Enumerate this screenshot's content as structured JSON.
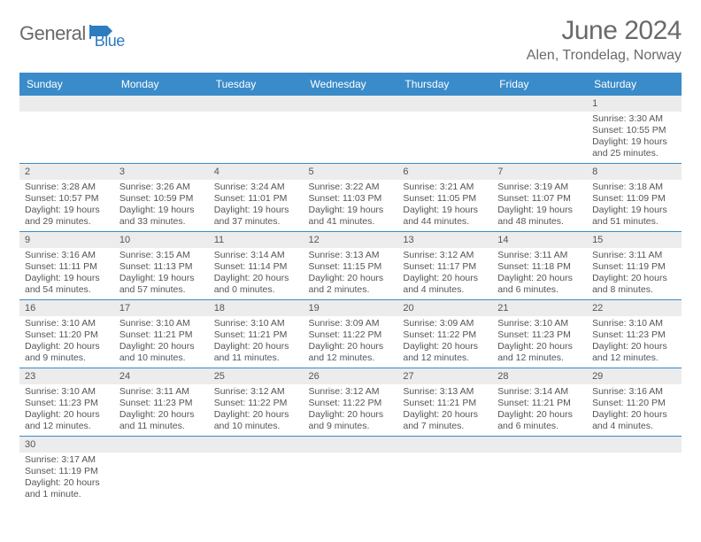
{
  "logo": {
    "text1": "General",
    "text2": "Blue",
    "icon_color": "#2d7cc0",
    "text_color": "#6a6a6a"
  },
  "title": "June 2024",
  "location": "Alen, Trondelag, Norway",
  "colors": {
    "header_bg": "#3a8bc9",
    "header_fg": "#ffffff",
    "daynum_bg": "#ececec",
    "border": "#3a8bc9",
    "text": "#555555"
  },
  "weekdays": [
    "Sunday",
    "Monday",
    "Tuesday",
    "Wednesday",
    "Thursday",
    "Friday",
    "Saturday"
  ],
  "weeks": [
    [
      null,
      null,
      null,
      null,
      null,
      null,
      {
        "n": "1",
        "sr": "Sunrise: 3:30 AM",
        "ss": "Sunset: 10:55 PM",
        "dl": "Daylight: 19 hours and 25 minutes."
      }
    ],
    [
      {
        "n": "2",
        "sr": "Sunrise: 3:28 AM",
        "ss": "Sunset: 10:57 PM",
        "dl": "Daylight: 19 hours and 29 minutes."
      },
      {
        "n": "3",
        "sr": "Sunrise: 3:26 AM",
        "ss": "Sunset: 10:59 PM",
        "dl": "Daylight: 19 hours and 33 minutes."
      },
      {
        "n": "4",
        "sr": "Sunrise: 3:24 AM",
        "ss": "Sunset: 11:01 PM",
        "dl": "Daylight: 19 hours and 37 minutes."
      },
      {
        "n": "5",
        "sr": "Sunrise: 3:22 AM",
        "ss": "Sunset: 11:03 PM",
        "dl": "Daylight: 19 hours and 41 minutes."
      },
      {
        "n": "6",
        "sr": "Sunrise: 3:21 AM",
        "ss": "Sunset: 11:05 PM",
        "dl": "Daylight: 19 hours and 44 minutes."
      },
      {
        "n": "7",
        "sr": "Sunrise: 3:19 AM",
        "ss": "Sunset: 11:07 PM",
        "dl": "Daylight: 19 hours and 48 minutes."
      },
      {
        "n": "8",
        "sr": "Sunrise: 3:18 AM",
        "ss": "Sunset: 11:09 PM",
        "dl": "Daylight: 19 hours and 51 minutes."
      }
    ],
    [
      {
        "n": "9",
        "sr": "Sunrise: 3:16 AM",
        "ss": "Sunset: 11:11 PM",
        "dl": "Daylight: 19 hours and 54 minutes."
      },
      {
        "n": "10",
        "sr": "Sunrise: 3:15 AM",
        "ss": "Sunset: 11:13 PM",
        "dl": "Daylight: 19 hours and 57 minutes."
      },
      {
        "n": "11",
        "sr": "Sunrise: 3:14 AM",
        "ss": "Sunset: 11:14 PM",
        "dl": "Daylight: 20 hours and 0 minutes."
      },
      {
        "n": "12",
        "sr": "Sunrise: 3:13 AM",
        "ss": "Sunset: 11:15 PM",
        "dl": "Daylight: 20 hours and 2 minutes."
      },
      {
        "n": "13",
        "sr": "Sunrise: 3:12 AM",
        "ss": "Sunset: 11:17 PM",
        "dl": "Daylight: 20 hours and 4 minutes."
      },
      {
        "n": "14",
        "sr": "Sunrise: 3:11 AM",
        "ss": "Sunset: 11:18 PM",
        "dl": "Daylight: 20 hours and 6 minutes."
      },
      {
        "n": "15",
        "sr": "Sunrise: 3:11 AM",
        "ss": "Sunset: 11:19 PM",
        "dl": "Daylight: 20 hours and 8 minutes."
      }
    ],
    [
      {
        "n": "16",
        "sr": "Sunrise: 3:10 AM",
        "ss": "Sunset: 11:20 PM",
        "dl": "Daylight: 20 hours and 9 minutes."
      },
      {
        "n": "17",
        "sr": "Sunrise: 3:10 AM",
        "ss": "Sunset: 11:21 PM",
        "dl": "Daylight: 20 hours and 10 minutes."
      },
      {
        "n": "18",
        "sr": "Sunrise: 3:10 AM",
        "ss": "Sunset: 11:21 PM",
        "dl": "Daylight: 20 hours and 11 minutes."
      },
      {
        "n": "19",
        "sr": "Sunrise: 3:09 AM",
        "ss": "Sunset: 11:22 PM",
        "dl": "Daylight: 20 hours and 12 minutes."
      },
      {
        "n": "20",
        "sr": "Sunrise: 3:09 AM",
        "ss": "Sunset: 11:22 PM",
        "dl": "Daylight: 20 hours and 12 minutes."
      },
      {
        "n": "21",
        "sr": "Sunrise: 3:10 AM",
        "ss": "Sunset: 11:23 PM",
        "dl": "Daylight: 20 hours and 12 minutes."
      },
      {
        "n": "22",
        "sr": "Sunrise: 3:10 AM",
        "ss": "Sunset: 11:23 PM",
        "dl": "Daylight: 20 hours and 12 minutes."
      }
    ],
    [
      {
        "n": "23",
        "sr": "Sunrise: 3:10 AM",
        "ss": "Sunset: 11:23 PM",
        "dl": "Daylight: 20 hours and 12 minutes."
      },
      {
        "n": "24",
        "sr": "Sunrise: 3:11 AM",
        "ss": "Sunset: 11:23 PM",
        "dl": "Daylight: 20 hours and 11 minutes."
      },
      {
        "n": "25",
        "sr": "Sunrise: 3:12 AM",
        "ss": "Sunset: 11:22 PM",
        "dl": "Daylight: 20 hours and 10 minutes."
      },
      {
        "n": "26",
        "sr": "Sunrise: 3:12 AM",
        "ss": "Sunset: 11:22 PM",
        "dl": "Daylight: 20 hours and 9 minutes."
      },
      {
        "n": "27",
        "sr": "Sunrise: 3:13 AM",
        "ss": "Sunset: 11:21 PM",
        "dl": "Daylight: 20 hours and 7 minutes."
      },
      {
        "n": "28",
        "sr": "Sunrise: 3:14 AM",
        "ss": "Sunset: 11:21 PM",
        "dl": "Daylight: 20 hours and 6 minutes."
      },
      {
        "n": "29",
        "sr": "Sunrise: 3:16 AM",
        "ss": "Sunset: 11:20 PM",
        "dl": "Daylight: 20 hours and 4 minutes."
      }
    ],
    [
      {
        "n": "30",
        "sr": "Sunrise: 3:17 AM",
        "ss": "Sunset: 11:19 PM",
        "dl": "Daylight: 20 hours and 1 minute."
      },
      null,
      null,
      null,
      null,
      null,
      null
    ]
  ]
}
